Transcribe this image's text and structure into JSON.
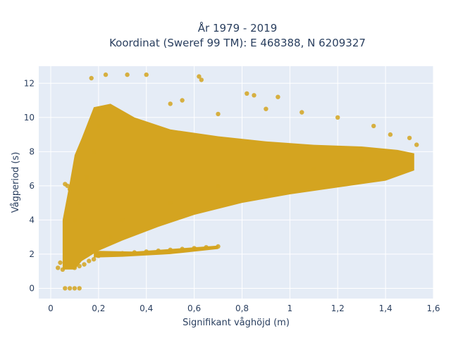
{
  "chart_data": {
    "type": "scatter",
    "title_line1": "År 1979 - 2019",
    "title_line2": "Koordinat (Sweref 99 TM): E 468388, N 6209327",
    "xlabel": "Signifikant våghöjd (m)",
    "ylabel": "Vågperiod (s)",
    "xlim": [
      -0.05,
      1.6
    ],
    "ylim": [
      -0.6,
      13.0
    ],
    "x_ticks": [
      0,
      0.2,
      0.4,
      0.6,
      0.8,
      1,
      1.2,
      1.4,
      1.6
    ],
    "x_tick_labels": [
      "0",
      "0,2",
      "0,4",
      "0,6",
      "0,8",
      "1",
      "1,2",
      "1,4",
      "1,6"
    ],
    "y_ticks": [
      0,
      2,
      4,
      6,
      8,
      10,
      12
    ],
    "y_tick_labels": [
      "0",
      "2",
      "4",
      "6",
      "8",
      "10",
      "12"
    ],
    "grid": true,
    "colors": {
      "marker": "#d4a420",
      "plot_bg": "#e5ecf6",
      "grid": "#ffffff"
    },
    "series": [
      {
        "points": [
          [
            0.03,
            1.2
          ],
          [
            0.04,
            1.5
          ],
          [
            0.05,
            1.1
          ],
          [
            0.06,
            6.1
          ],
          [
            0.07,
            6.0
          ],
          [
            0.08,
            5.8
          ],
          [
            0.06,
            0.0
          ],
          [
            0.08,
            0.0
          ],
          [
            0.1,
            0.0
          ],
          [
            0.12,
            0.0
          ],
          [
            0.08,
            1.3
          ],
          [
            0.1,
            1.2
          ],
          [
            0.12,
            1.3
          ],
          [
            0.14,
            1.4
          ],
          [
            0.16,
            1.6
          ],
          [
            0.18,
            1.7
          ],
          [
            0.2,
            1.9
          ],
          [
            0.25,
            2.0
          ],
          [
            0.3,
            2.05
          ],
          [
            0.35,
            2.1
          ],
          [
            0.4,
            2.15
          ],
          [
            0.45,
            2.2
          ],
          [
            0.5,
            2.25
          ],
          [
            0.55,
            2.3
          ],
          [
            0.6,
            2.35
          ],
          [
            0.65,
            2.4
          ],
          [
            0.7,
            2.45
          ],
          [
            0.1,
            4.0
          ],
          [
            0.12,
            5.0
          ],
          [
            0.15,
            6.5
          ],
          [
            0.18,
            8.0
          ],
          [
            0.2,
            9.5
          ],
          [
            0.22,
            10.5
          ],
          [
            0.17,
            12.3
          ],
          [
            0.23,
            12.5
          ],
          [
            0.32,
            12.5
          ],
          [
            0.4,
            12.5
          ],
          [
            0.62,
            12.4
          ],
          [
            0.63,
            12.2
          ],
          [
            0.55,
            11.0
          ],
          [
            0.82,
            11.4
          ],
          [
            0.85,
            11.3
          ],
          [
            0.95,
            11.2
          ],
          [
            0.5,
            10.8
          ],
          [
            0.7,
            10.2
          ],
          [
            0.9,
            10.5
          ],
          [
            1.05,
            10.3
          ],
          [
            1.2,
            10.0
          ],
          [
            1.35,
            9.5
          ],
          [
            1.42,
            9.0
          ],
          [
            1.5,
            8.8
          ],
          [
            1.53,
            8.4
          ],
          [
            1.3,
            7.5
          ],
          [
            1.1,
            7.0
          ],
          [
            0.9,
            6.5
          ],
          [
            0.7,
            6.0
          ],
          [
            0.5,
            5.0
          ],
          [
            0.3,
            4.0
          ],
          [
            0.25,
            3.0
          ]
        ]
      }
    ]
  }
}
